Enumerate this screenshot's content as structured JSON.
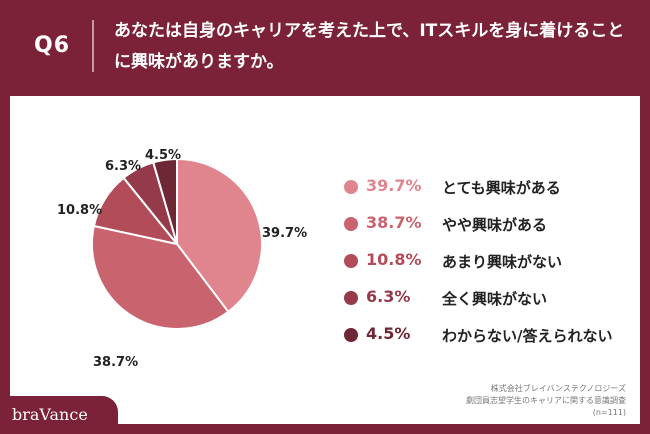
{
  "header": {
    "q_label": "Q6",
    "question": "あなたは自身のキャリアを考えた上で、ITスキルを身に着けることに興味がありますか。"
  },
  "colors": {
    "background": "#7b2238",
    "panel": "#ffffff"
  },
  "chart_data": {
    "type": "pie",
    "title": "",
    "categories": [
      "とても興味がある",
      "やや興味がある",
      "あまり興味がない",
      "全く興味がない",
      "わからない/答えられない"
    ],
    "values": [
      39.7,
      38.7,
      10.8,
      6.3,
      4.5
    ],
    "value_labels": [
      "39.7%",
      "38.7%",
      "10.8%",
      "6.3%",
      "4.5%"
    ],
    "colors": [
      "#e0858d",
      "#c9646f",
      "#b24c59",
      "#943a4a",
      "#6e2735"
    ],
    "legend_placement": "right"
  },
  "source": {
    "line1": "株式会社ブレイバンステクノロジーズ",
    "line2": "劇団員志望学生のキャリアに関する意識調査",
    "line3": "(n=111)"
  },
  "logo": {
    "text": "braVance"
  }
}
